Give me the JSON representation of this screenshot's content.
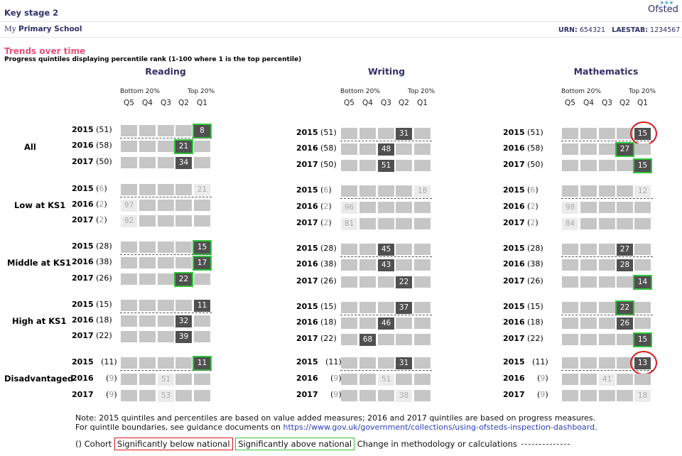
{
  "header": {
    "key_stage": "Key stage 2",
    "logo_text": "Ofsted",
    "school_prefix": "My",
    "school_name": "Primary School",
    "urn_label": "URN:",
    "urn": "654321",
    "laestab_label": "LAESTAB:",
    "laestab": "1234567"
  },
  "section": {
    "title": "Trends over time",
    "subtitle": "Progress quintiles displaying percentile rank (1-100 where 1 is the top percentile)"
  },
  "bands": {
    "bottom": "Bottom 20%",
    "top": "Top 20%"
  },
  "quintiles": [
    "Q5",
    "Q4",
    "Q3",
    "Q2",
    "Q1"
  ],
  "subjects": [
    {
      "name": "Reading",
      "groups": [
        {
          "label": "All",
          "rows": [
            {
              "year": "2015",
              "cohort": "51",
              "q": "Q1",
              "value": "8",
              "style": "dark",
              "flag": "green"
            },
            {
              "year": "2016",
              "cohort": "58",
              "q": "Q2",
              "value": "21",
              "style": "dark",
              "flag": "green"
            },
            {
              "year": "2017",
              "cohort": "50",
              "q": "Q2",
              "value": "34",
              "style": "dark",
              "flag": ""
            }
          ]
        },
        {
          "label": "Low at KS1",
          "rows": [
            {
              "year": "2015",
              "cohort": "6",
              "q": "Q1",
              "value": "21",
              "style": "faint",
              "flag": ""
            },
            {
              "year": "2016",
              "cohort": "2",
              "q": "Q5",
              "value": "97",
              "style": "faint",
              "flag": ""
            },
            {
              "year": "2017",
              "cohort": "2",
              "q": "Q5",
              "value": "92",
              "style": "faint",
              "flag": ""
            }
          ]
        },
        {
          "label": "Middle at KS1",
          "rows": [
            {
              "year": "2015",
              "cohort": "28",
              "q": "Q1",
              "value": "15",
              "style": "dark",
              "flag": "green"
            },
            {
              "year": "2016",
              "cohort": "38",
              "q": "Q1",
              "value": "17",
              "style": "dark",
              "flag": "green"
            },
            {
              "year": "2017",
              "cohort": "26",
              "q": "Q2",
              "value": "22",
              "style": "dark",
              "flag": "green"
            }
          ]
        },
        {
          "label": "High at KS1",
          "rows": [
            {
              "year": "2015",
              "cohort": "15",
              "q": "Q1",
              "value": "11",
              "style": "dark",
              "flag": ""
            },
            {
              "year": "2016",
              "cohort": "18",
              "q": "Q2",
              "value": "32",
              "style": "dark",
              "flag": ""
            },
            {
              "year": "2017",
              "cohort": "22",
              "q": "Q2",
              "value": "39",
              "style": "dark",
              "flag": ""
            }
          ]
        },
        {
          "label": "Disadvantaged",
          "rows": [
            {
              "year": "2015",
              "cohort": "11",
              "q": "Q1",
              "value": "11",
              "style": "dark",
              "flag": "green"
            },
            {
              "year": "2016",
              "cohort": "9",
              "q": "Q3",
              "value": "51",
              "style": "faint",
              "flag": ""
            },
            {
              "year": "2017",
              "cohort": "9",
              "q": "Q3",
              "value": "53",
              "style": "faint",
              "flag": ""
            }
          ]
        }
      ]
    },
    {
      "name": "Writing",
      "groups": [
        {
          "label": "All",
          "rows": [
            {
              "year": "2015",
              "cohort": "51",
              "q": "Q2",
              "value": "31",
              "style": "dark",
              "flag": ""
            },
            {
              "year": "2016",
              "cohort": "58",
              "q": "Q3",
              "value": "48",
              "style": "dark",
              "flag": ""
            },
            {
              "year": "2017",
              "cohort": "50",
              "q": "Q3",
              "value": "51",
              "style": "dark",
              "flag": ""
            }
          ]
        },
        {
          "label": "Low at KS1",
          "rows": [
            {
              "year": "2015",
              "cohort": "6",
              "q": "Q1",
              "value": "18",
              "style": "faint",
              "flag": ""
            },
            {
              "year": "2016",
              "cohort": "2",
              "q": "Q5",
              "value": "96",
              "style": "faint",
              "flag": ""
            },
            {
              "year": "2017",
              "cohort": "2",
              "q": "Q5",
              "value": "81",
              "style": "faint",
              "flag": ""
            }
          ]
        },
        {
          "label": "Middle at KS1",
          "rows": [
            {
              "year": "2015",
              "cohort": "28",
              "q": "Q3",
              "value": "45",
              "style": "dark",
              "flag": ""
            },
            {
              "year": "2016",
              "cohort": "38",
              "q": "Q3",
              "value": "43",
              "style": "dark",
              "flag": ""
            },
            {
              "year": "2017",
              "cohort": "26",
              "q": "Q2",
              "value": "22",
              "style": "dark",
              "flag": ""
            }
          ]
        },
        {
          "label": "High at KS1",
          "rows": [
            {
              "year": "2015",
              "cohort": "15",
              "q": "Q2",
              "value": "37",
              "style": "dark",
              "flag": ""
            },
            {
              "year": "2016",
              "cohort": "18",
              "q": "Q3",
              "value": "46",
              "style": "dark",
              "flag": ""
            },
            {
              "year": "2017",
              "cohort": "22",
              "q": "Q4",
              "value": "68",
              "style": "dark",
              "flag": ""
            }
          ]
        },
        {
          "label": "Disadvantaged",
          "rows": [
            {
              "year": "2015",
              "cohort": "11",
              "q": "Q2",
              "value": "31",
              "style": "dark",
              "flag": ""
            },
            {
              "year": "2016",
              "cohort": "9",
              "q": "Q3",
              "value": "51",
              "style": "faint",
              "flag": ""
            },
            {
              "year": "2017",
              "cohort": "9",
              "q": "Q2",
              "value": "38",
              "style": "faint",
              "flag": ""
            }
          ]
        }
      ]
    },
    {
      "name": "Mathematics",
      "groups": [
        {
          "label": "All",
          "rows": [
            {
              "year": "2015",
              "cohort": "51",
              "q": "Q1",
              "value": "15",
              "style": "dark",
              "flag": "red"
            },
            {
              "year": "2016",
              "cohort": "58",
              "q": "Q2",
              "value": "27",
              "style": "dark",
              "flag": "green"
            },
            {
              "year": "2017",
              "cohort": "50",
              "q": "Q1",
              "value": "15",
              "style": "dark",
              "flag": "green"
            }
          ]
        },
        {
          "label": "Low at KS1",
          "rows": [
            {
              "year": "2015",
              "cohort": "6",
              "q": "Q1",
              "value": "12",
              "style": "faint",
              "flag": ""
            },
            {
              "year": "2016",
              "cohort": "2",
              "q": "Q5",
              "value": "98",
              "style": "faint",
              "flag": ""
            },
            {
              "year": "2017",
              "cohort": "2",
              "q": "Q5",
              "value": "84",
              "style": "faint",
              "flag": ""
            }
          ]
        },
        {
          "label": "Middle at KS1",
          "rows": [
            {
              "year": "2015",
              "cohort": "28",
              "q": "Q2",
              "value": "27",
              "style": "dark",
              "flag": ""
            },
            {
              "year": "2016",
              "cohort": "38",
              "q": "Q2",
              "value": "28",
              "style": "dark",
              "flag": ""
            },
            {
              "year": "2017",
              "cohort": "26",
              "q": "Q1",
              "value": "14",
              "style": "dark",
              "flag": "green"
            }
          ]
        },
        {
          "label": "High at KS1",
          "rows": [
            {
              "year": "2015",
              "cohort": "15",
              "q": "Q2",
              "value": "22",
              "style": "dark",
              "flag": "green"
            },
            {
              "year": "2016",
              "cohort": "18",
              "q": "Q2",
              "value": "26",
              "style": "dark",
              "flag": ""
            },
            {
              "year": "2017",
              "cohort": "22",
              "q": "Q1",
              "value": "15",
              "style": "dark",
              "flag": "green"
            }
          ]
        },
        {
          "label": "Disadvantaged",
          "rows": [
            {
              "year": "2015",
              "cohort": "11",
              "q": "Q1",
              "value": "13",
              "style": "dark",
              "flag": "red"
            },
            {
              "year": "2016",
              "cohort": "9",
              "q": "Q3",
              "value": "41",
              "style": "faint",
              "flag": ""
            },
            {
              "year": "2017",
              "cohort": "9",
              "q": "Q1",
              "value": "18",
              "style": "faint",
              "flag": ""
            }
          ]
        }
      ]
    }
  ],
  "note": {
    "line1": "Note: 2015 quintiles and percentiles are based on value added measures; 2016 and 2017 quintiles are based on progress measures.",
    "line2_prefix": "For quintile boundaries, see guidance documents on ",
    "link": "https://www.gov.uk/government/collections/using-ofsteds-inspection-dashboard",
    "line2_suffix": "."
  },
  "legend": {
    "cohort": "() Cohort",
    "below": "Significantly below national",
    "above": "Significantly above national",
    "change": "Change in methodology or calculations"
  },
  "colors": {
    "accent": "#2f3167",
    "pink": "#e8507a",
    "green": "#31c53a",
    "red": "#d9161d",
    "dark_cell": "#505050",
    "cell": "#c6c6c6"
  }
}
